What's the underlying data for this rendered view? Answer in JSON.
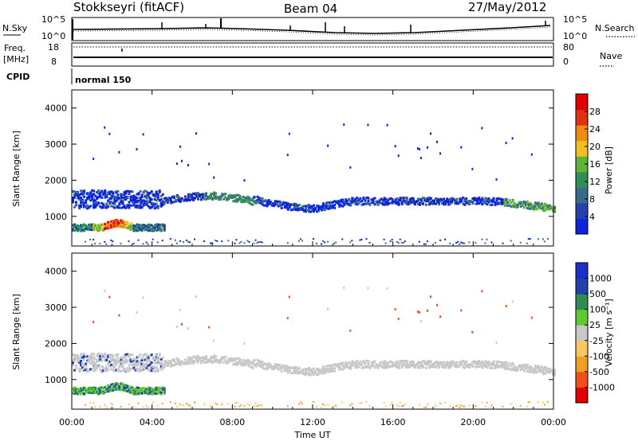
{
  "header": {
    "station": "Stokkseyri (fitACF)",
    "beam": "Beam 04",
    "date": "27/May/2012"
  },
  "top_panels": {
    "nsky_label": "N.Sky",
    "nsky_ticks": [
      "10^5",
      "10^0"
    ],
    "nsearch_label": "N.Search",
    "nsearch_ticks": [
      "10^5",
      "10^0"
    ],
    "freq_label_1": "Freq.",
    "freq_label_2": "[MHz]",
    "freq_ticks": [
      "18",
      "8"
    ],
    "nave_label": "Nave",
    "nave_ticks": [
      "80",
      "0"
    ],
    "cpid_label": "CPID",
    "cpid_value": "normal 150"
  },
  "chart_data": [
    {
      "type": "heatmap",
      "panel": "power",
      "ylabel": "Slant Range [km]",
      "xlabel": "Time UT",
      "xlim": [
        "00:00",
        "24:00"
      ],
      "ylim": [
        180,
        4500
      ],
      "y_ticks": [
        "4000",
        "3000",
        "2000",
        "1000"
      ],
      "x_ticks": [
        "00:00",
        "04:00",
        "08:00",
        "12:00",
        "16:00",
        "20:00",
        "00:00"
      ],
      "colorbar": {
        "label": "Power [dB]",
        "ticks": [
          "28",
          "24",
          "20",
          "16",
          "12",
          "8",
          "4"
        ],
        "range": [
          0,
          30
        ],
        "colors": [
          "#0d23dc",
          "#2740b0",
          "#3a6a8a",
          "#2f8f55",
          "#5fb23a",
          "#f0c020",
          "#f08a10",
          "#e03010",
          "#e00000"
        ]
      },
      "features": [
        {
          "name": "main band",
          "time": [
            "00:00",
            "24:00"
          ],
          "range_km": [
            1200,
            1800
          ],
          "typical_power_db": 8
        },
        {
          "name": "near band",
          "time": [
            "00:00",
            "04:30"
          ],
          "range_km": [
            600,
            1000
          ],
          "peak_power_db": 30
        }
      ]
    },
    {
      "type": "heatmap",
      "panel": "velocity",
      "ylabel": "Slant Range [km]",
      "xlabel": "Time UT",
      "xlim": [
        "00:00",
        "24:00"
      ],
      "ylim": [
        180,
        4500
      ],
      "y_ticks": [
        "4000",
        "3000",
        "2000",
        "1000"
      ],
      "x_ticks": [
        "00:00",
        "04:00",
        "08:00",
        "12:00",
        "16:00",
        "20:00",
        "00:00"
      ],
      "colorbar": {
        "label": "Velocity [m s⁻¹]",
        "ticks": [
          "1000",
          "500",
          "100",
          "25",
          "-25",
          "-100",
          "-500",
          "-1000"
        ],
        "range": [
          -1000,
          1000
        ],
        "colors": [
          "#e00000",
          "#f05018",
          "#f0a020",
          "#f8c860",
          "#c8c8c8",
          "#60c830",
          "#2e8c50",
          "#2040b0",
          "#1830c8"
        ]
      }
    }
  ]
}
